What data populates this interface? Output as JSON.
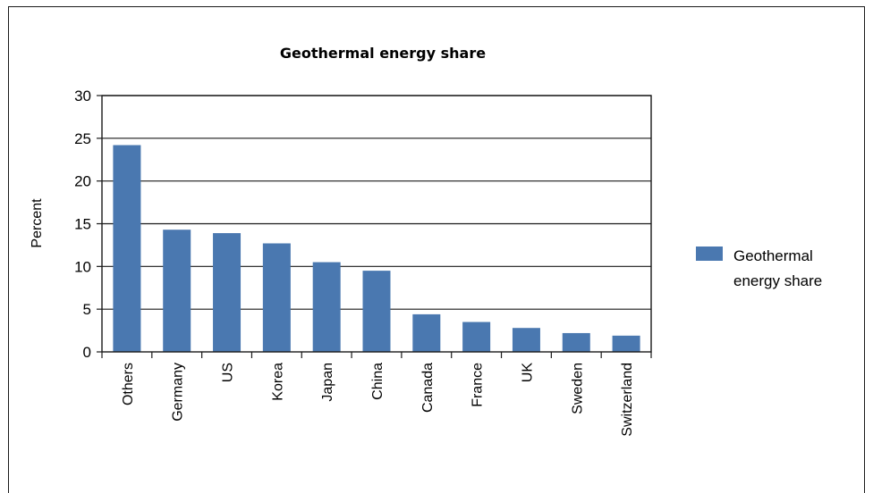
{
  "chart_data": {
    "type": "bar",
    "title": "Geothermal energy share",
    "xlabel": "",
    "ylabel": "Percent",
    "ylim": [
      0,
      30
    ],
    "yticks": [
      0,
      5,
      10,
      15,
      20,
      25,
      30
    ],
    "grid": true,
    "legend_position": "right",
    "categories": [
      "Others",
      "Germany",
      "US",
      "Korea",
      "Japan",
      "China",
      "Canada",
      "France",
      "UK",
      "Sweden",
      "Switzerland"
    ],
    "series": [
      {
        "name": "Geothermal energy share",
        "legend_lines": [
          "Geothermal",
          "energy share"
        ],
        "color": "#4a78b0",
        "values": [
          24.2,
          14.3,
          13.9,
          12.7,
          10.5,
          9.5,
          4.4,
          3.5,
          2.8,
          2.2,
          1.9
        ]
      }
    ]
  }
}
